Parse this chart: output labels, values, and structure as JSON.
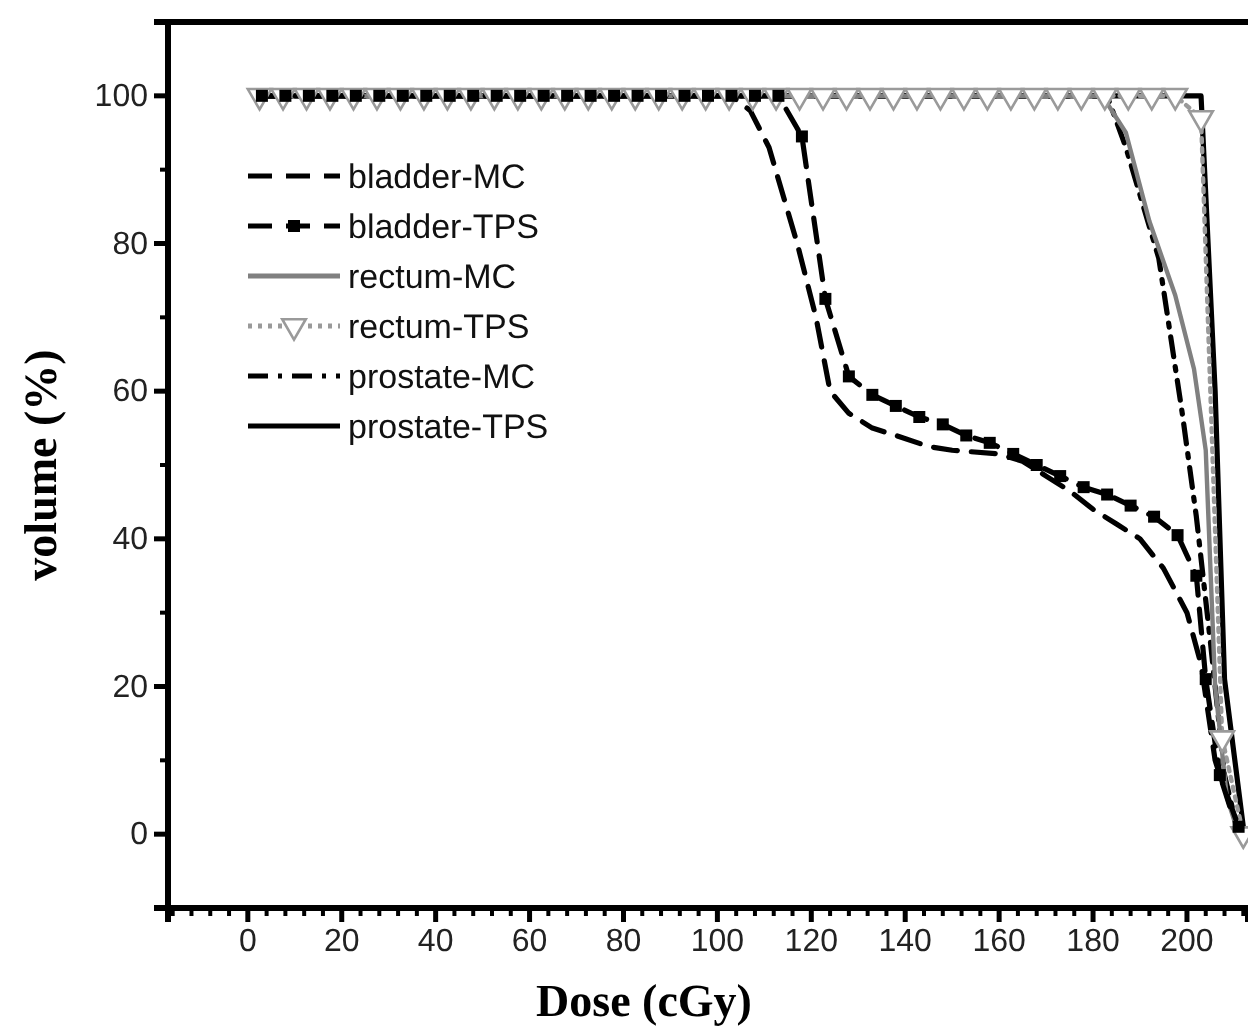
{
  "chart_data": {
    "type": "line",
    "xlabel": "Dose (cGy)",
    "ylabel": "volume (%)",
    "xlim": [
      -17,
      213
    ],
    "ylim": [
      -10,
      110
    ],
    "xticks": [
      0,
      20,
      40,
      60,
      80,
      100,
      120,
      140,
      160,
      180,
      200
    ],
    "yticks": [
      0,
      20,
      40,
      60,
      80,
      100
    ],
    "grid": false,
    "legend": "top left",
    "series": [
      {
        "name": "bladder-MC",
        "color": "#000000",
        "line_style": "dashed",
        "marker": "none",
        "x": [
          2,
          103,
          107,
          111,
          117,
          121,
          124,
          128,
          133,
          138,
          145,
          150,
          160,
          165,
          170,
          175,
          180,
          185,
          190,
          195,
          200,
          203,
          206,
          210
        ],
        "values": [
          100,
          100,
          98,
          93,
          80,
          70,
          60,
          57,
          55,
          54,
          52.5,
          52,
          51.5,
          50.5,
          48.5,
          46.5,
          44,
          42,
          40,
          36,
          30,
          23,
          10,
          2
        ]
      },
      {
        "name": "bladder-TPS",
        "color": "#000000",
        "line_style": "dashed",
        "marker": "square",
        "x": [
          3,
          8,
          13,
          18,
          23,
          28,
          33,
          38,
          43,
          48,
          53,
          58,
          63,
          68,
          73,
          78,
          83,
          88,
          93,
          98,
          103,
          108,
          113,
          118,
          123,
          128,
          133,
          138,
          143,
          148,
          153,
          158,
          163,
          168,
          173,
          178,
          183,
          188,
          193,
          198,
          202,
          204,
          207,
          211
        ],
        "values": [
          100,
          100,
          100,
          100,
          100,
          100,
          100,
          100,
          100,
          100,
          100,
          100,
          100,
          100,
          100,
          100,
          100,
          100,
          100,
          100,
          100,
          100,
          100,
          94.5,
          72.5,
          62,
          59.5,
          58,
          56.5,
          55.5,
          54,
          53,
          51.5,
          50,
          48.5,
          47,
          46,
          44.5,
          43,
          40.5,
          35,
          21,
          8,
          1
        ]
      },
      {
        "name": "rectum-MC",
        "color": "#808080",
        "line_style": "solid",
        "marker": "none",
        "x": [
          2,
          182,
          187,
          192,
          197.5,
          201.5,
          204,
          206,
          208.5,
          211
        ],
        "values": [
          100,
          100,
          95,
          83,
          73,
          63,
          52,
          20,
          5,
          0
        ]
      },
      {
        "name": "rectum-TPS",
        "color": "#9a9a9a",
        "line_style": "dotted",
        "marker": "triangle",
        "x": [
          2.5,
          7.5,
          12.5,
          17.5,
          22.5,
          27.5,
          32.5,
          37.5,
          42.5,
          47.5,
          52.5,
          57.5,
          62.5,
          67.5,
          72.5,
          77.5,
          82.5,
          87.5,
          92.5,
          97.5,
          102.5,
          107.5,
          112.5,
          117.5,
          122.5,
          127.5,
          132.5,
          137.5,
          142.5,
          147.5,
          152.5,
          157.5,
          162.5,
          167.5,
          172.5,
          177.5,
          182.5,
          187.5,
          192.5,
          197.5,
          203,
          207.5,
          212
        ],
        "values": [
          100,
          100,
          100,
          100,
          100,
          100,
          100,
          100,
          100,
          100,
          100,
          100,
          100,
          100,
          100,
          100,
          100,
          100,
          100,
          100,
          100,
          100,
          100,
          100,
          100,
          100,
          100,
          100,
          100,
          100,
          100,
          100,
          100,
          100,
          100,
          100,
          100,
          100,
          100,
          100,
          97,
          13,
          0
        ]
      },
      {
        "name": "prostate-MC",
        "color": "#000000",
        "line_style": "dashdot",
        "marker": "none",
        "x": [
          2,
          183,
          187,
          194,
          199,
          202,
          205,
          208,
          211
        ],
        "values": [
          100,
          100,
          93,
          78,
          57,
          43,
          26,
          8,
          0
        ]
      },
      {
        "name": "prostate-TPS",
        "color": "#000000",
        "line_style": "solid",
        "marker": "none",
        "x": [
          2,
          203,
          206,
          208,
          212
        ],
        "values": [
          100,
          100,
          60,
          21,
          1
        ]
      }
    ]
  }
}
